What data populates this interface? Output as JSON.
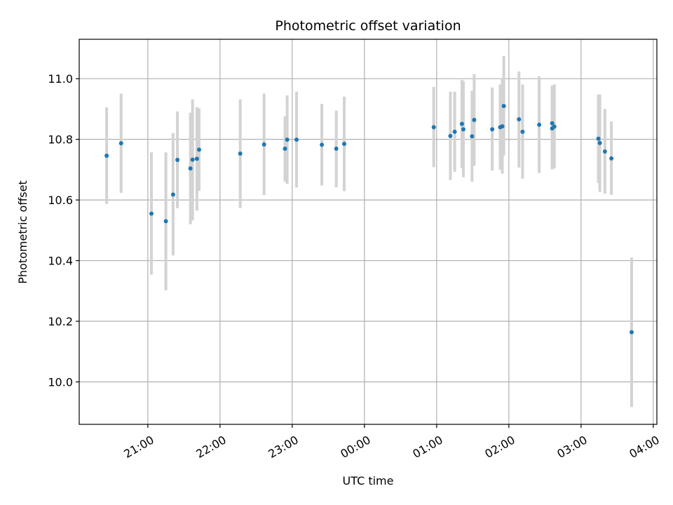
{
  "chart_data": {
    "type": "scatter",
    "title": "Photometric offset variation",
    "xlabel": "UTC time",
    "ylabel": "Photometric offset",
    "x_unit": "hours",
    "xlim": [
      20.05,
      28.05
    ],
    "ylim": [
      9.86,
      11.13
    ],
    "grid": true,
    "x_ticks": [
      {
        "value": 21,
        "label": "21:00"
      },
      {
        "value": 22,
        "label": "22:00"
      },
      {
        "value": 23,
        "label": "23:00"
      },
      {
        "value": 24,
        "label": "00:00"
      },
      {
        "value": 25,
        "label": "01:00"
      },
      {
        "value": 26,
        "label": "02:00"
      },
      {
        "value": 27,
        "label": "03:00"
      },
      {
        "value": 28,
        "label": "04:00"
      }
    ],
    "y_ticks": [
      {
        "value": 10.0,
        "label": "10.0"
      },
      {
        "value": 10.2,
        "label": "10.2"
      },
      {
        "value": 10.4,
        "label": "10.4"
      },
      {
        "value": 10.6,
        "label": "10.6"
      },
      {
        "value": 10.8,
        "label": "10.8"
      },
      {
        "value": 11.0,
        "label": "11.0"
      }
    ],
    "colors": {
      "point": "#1f77b4",
      "errorbar": "#d3d3d3",
      "grid": "#b0b0b0"
    },
    "series": [
      {
        "points": [
          {
            "x": 20.43,
            "y": 10.746,
            "lo": 10.587,
            "hi": 10.906
          },
          {
            "x": 20.63,
            "y": 10.787,
            "lo": 10.623,
            "hi": 10.951
          },
          {
            "x": 21.05,
            "y": 10.555,
            "lo": 10.354,
            "hi": 10.757
          },
          {
            "x": 21.25,
            "y": 10.53,
            "lo": 10.302,
            "hi": 10.757
          },
          {
            "x": 21.35,
            "y": 10.618,
            "lo": 10.417,
            "hi": 10.821
          },
          {
            "x": 21.41,
            "y": 10.732,
            "lo": 10.573,
            "hi": 10.892
          },
          {
            "x": 21.59,
            "y": 10.704,
            "lo": 10.52,
            "hi": 10.888
          },
          {
            "x": 21.62,
            "y": 10.733,
            "lo": 10.533,
            "hi": 10.932
          },
          {
            "x": 21.68,
            "y": 10.736,
            "lo": 10.565,
            "hi": 10.906
          },
          {
            "x": 21.71,
            "y": 10.766,
            "lo": 10.63,
            "hi": 10.902
          },
          {
            "x": 22.28,
            "y": 10.753,
            "lo": 10.573,
            "hi": 10.932
          },
          {
            "x": 22.61,
            "y": 10.783,
            "lo": 10.616,
            "hi": 10.951
          },
          {
            "x": 22.9,
            "y": 10.769,
            "lo": 10.661,
            "hi": 10.876
          },
          {
            "x": 22.93,
            "y": 10.799,
            "lo": 10.653,
            "hi": 10.945
          },
          {
            "x": 23.06,
            "y": 10.799,
            "lo": 10.641,
            "hi": 10.957
          },
          {
            "x": 23.41,
            "y": 10.782,
            "lo": 10.648,
            "hi": 10.917
          },
          {
            "x": 23.61,
            "y": 10.769,
            "lo": 10.642,
            "hi": 10.895
          },
          {
            "x": 23.72,
            "y": 10.785,
            "lo": 10.629,
            "hi": 10.941
          },
          {
            "x": 24.96,
            "y": 10.84,
            "lo": 10.708,
            "hi": 10.973
          },
          {
            "x": 25.19,
            "y": 10.811,
            "lo": 10.666,
            "hi": 10.957
          },
          {
            "x": 25.25,
            "y": 10.825,
            "lo": 10.693,
            "hi": 10.957
          },
          {
            "x": 25.35,
            "y": 10.851,
            "lo": 10.705,
            "hi": 10.996
          },
          {
            "x": 25.37,
            "y": 10.833,
            "lo": 10.675,
            "hi": 10.992
          },
          {
            "x": 25.49,
            "y": 10.81,
            "lo": 10.66,
            "hi": 10.96
          },
          {
            "x": 25.52,
            "y": 10.864,
            "lo": 10.713,
            "hi": 11.015
          },
          {
            "x": 25.77,
            "y": 10.833,
            "lo": 10.697,
            "hi": 10.971
          },
          {
            "x": 25.88,
            "y": 10.84,
            "lo": 10.7,
            "hi": 10.981
          },
          {
            "x": 25.91,
            "y": 10.843,
            "lo": 10.687,
            "hi": 11.0
          },
          {
            "x": 25.93,
            "y": 10.91,
            "lo": 10.747,
            "hi": 11.075
          },
          {
            "x": 26.14,
            "y": 10.866,
            "lo": 10.707,
            "hi": 11.024
          },
          {
            "x": 26.19,
            "y": 10.825,
            "lo": 10.67,
            "hi": 10.981
          },
          {
            "x": 26.42,
            "y": 10.848,
            "lo": 10.689,
            "hi": 11.008
          },
          {
            "x": 26.6,
            "y": 10.853,
            "lo": 10.701,
            "hi": 10.977
          },
          {
            "x": 26.6,
            "y": 10.836,
            "lo": 10.701,
            "hi": 10.977
          },
          {
            "x": 26.63,
            "y": 10.842,
            "lo": 10.704,
            "hi": 10.981
          },
          {
            "x": 27.24,
            "y": 10.802,
            "lo": 10.656,
            "hi": 10.948
          },
          {
            "x": 27.26,
            "y": 10.788,
            "lo": 10.627,
            "hi": 10.948
          },
          {
            "x": 27.33,
            "y": 10.76,
            "lo": 10.621,
            "hi": 10.9
          },
          {
            "x": 27.42,
            "y": 10.737,
            "lo": 10.617,
            "hi": 10.859
          },
          {
            "x": 27.7,
            "y": 10.164,
            "lo": 9.917,
            "hi": 10.41
          }
        ]
      }
    ]
  }
}
